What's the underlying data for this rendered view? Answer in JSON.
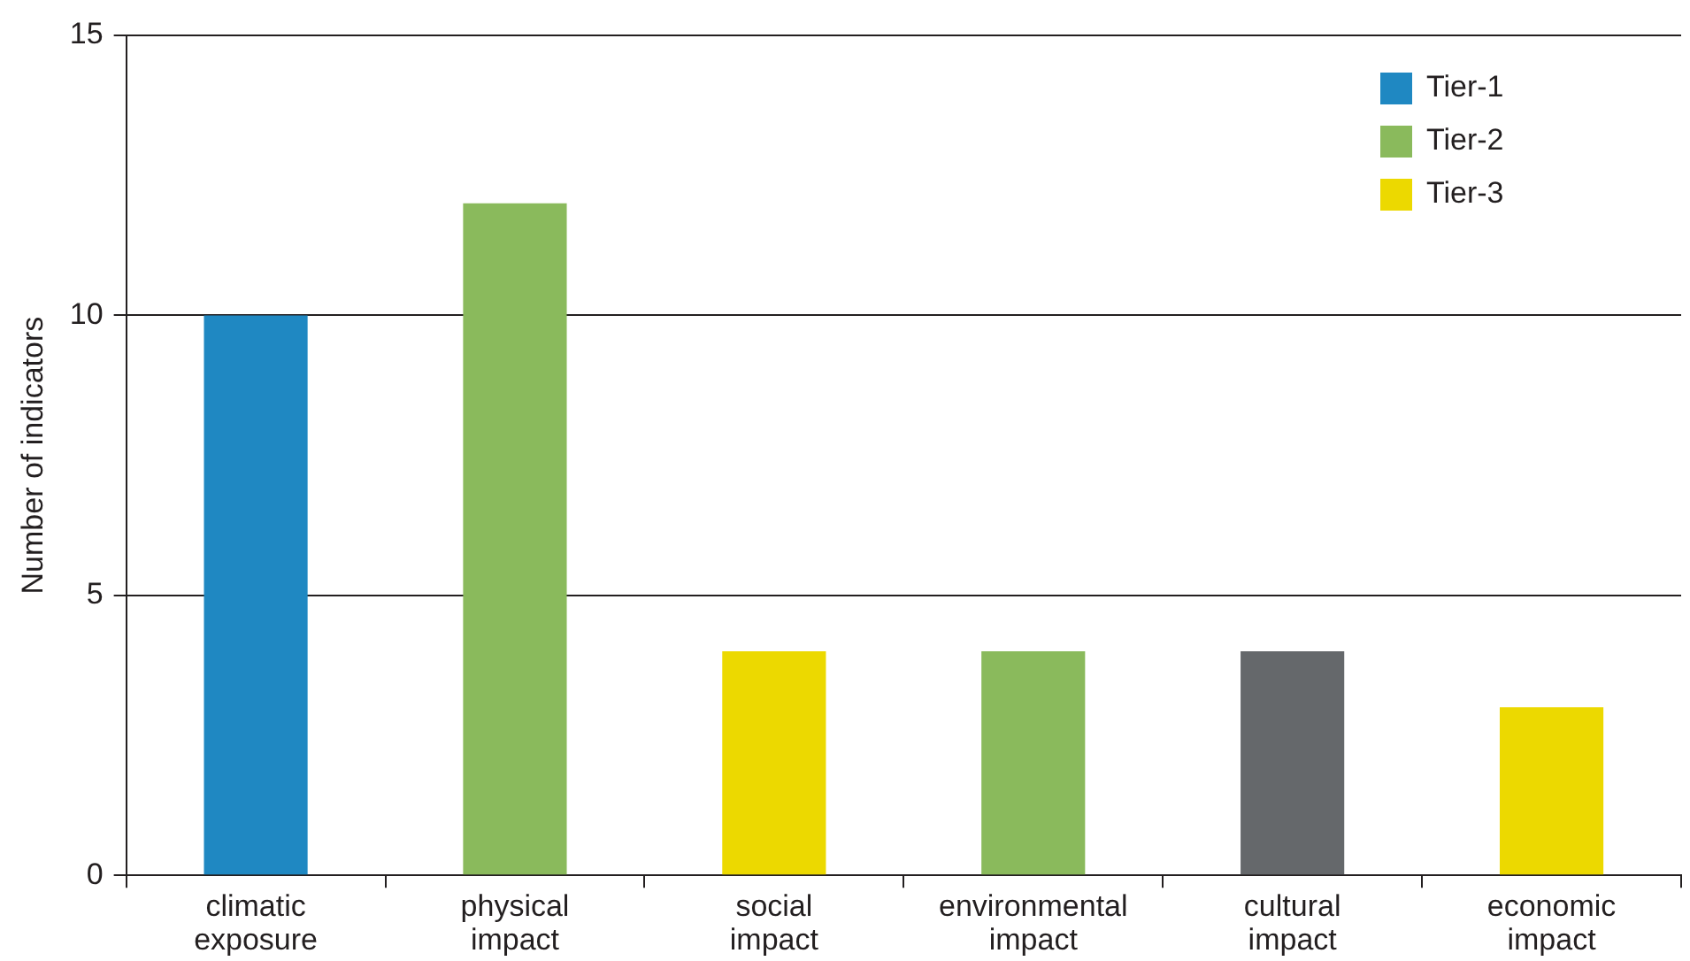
{
  "chart_data": {
    "type": "bar",
    "ylabel": "Number of indicators",
    "categories": [
      "climatic exposure",
      "physical impact",
      "social impact",
      "environmental impact",
      "cultural impact",
      "economic impact"
    ],
    "stacked": true,
    "series": [
      {
        "name": "Tier-1",
        "color": "#1f88c2",
        "values": [
          10,
          null,
          null,
          null,
          null,
          null
        ]
      },
      {
        "name": "Tier-2",
        "color": "#8aba5c",
        "values": [
          null,
          12,
          null,
          4,
          null,
          null
        ]
      },
      {
        "name": "Tier-3",
        "color": "#ecd900",
        "values": [
          null,
          null,
          4,
          null,
          null,
          3
        ]
      },
      {
        "color": "#65686b",
        "values": [
          null,
          null,
          null,
          null,
          4,
          null
        ]
      }
    ],
    "ylim": [
      0,
      15
    ],
    "yticks": [
      0,
      5,
      10,
      15
    ],
    "grid": "y",
    "legend": "top right"
  }
}
